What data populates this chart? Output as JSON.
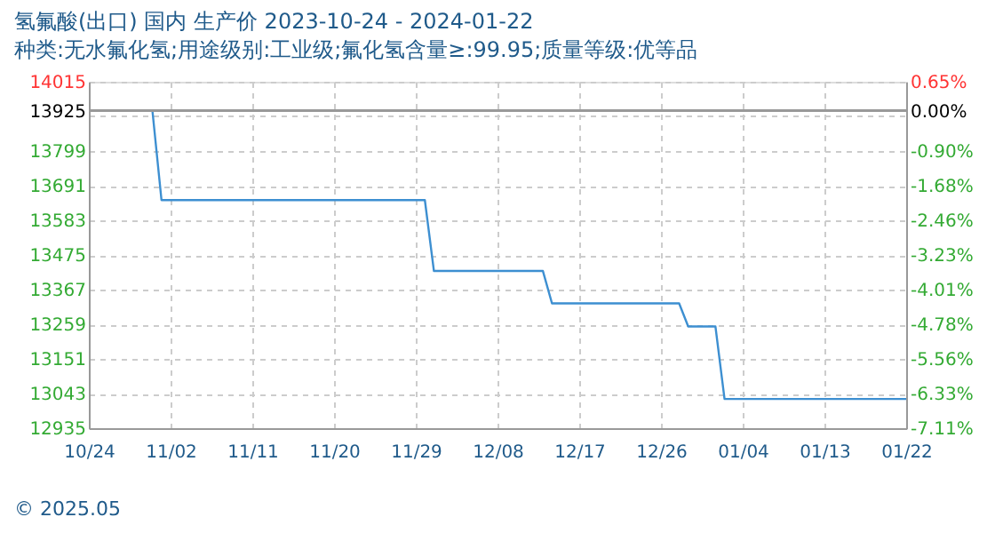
{
  "chart_data": {
    "type": "line",
    "title": "氢氟酸(出口) 国内 生产价 2023-10-24 - 2024-01-22",
    "subtitle": "种类:无水氟化氢;用途级别:工业级;氟化氢含量≥:99.95;质量等级:优等品",
    "annotations": [
      "© 2025.05"
    ],
    "x": [
      "2023-10-24",
      "2023-10-31",
      "2023-11-01",
      "2023-11-30",
      "2023-12-01",
      "2023-12-13",
      "2023-12-14",
      "2023-12-28",
      "2023-12-29",
      "2024-01-01",
      "2024-01-02",
      "2024-01-22"
    ],
    "series": [
      {
        "color": "#3d8fd1",
        "values": [
          13925,
          13925,
          13646,
          13646,
          13425,
          13425,
          13324,
          13324,
          13252,
          13252,
          13026,
          13026
        ]
      }
    ],
    "xlim": [
      "2023-10-24",
      "2024-01-22"
    ],
    "xticks": [
      {
        "value": "2023-10-24",
        "label": "10/24"
      },
      {
        "value": "2023-11-02",
        "label": "11/02"
      },
      {
        "value": "2023-11-11",
        "label": "11/11"
      },
      {
        "value": "2023-11-20",
        "label": "11/20"
      },
      {
        "value": "2023-11-29",
        "label": "11/29"
      },
      {
        "value": "2023-12-08",
        "label": "12/08"
      },
      {
        "value": "2023-12-17",
        "label": "12/17"
      },
      {
        "value": "2023-12-26",
        "label": "12/26"
      },
      {
        "value": "2024-01-04",
        "label": "01/04"
      },
      {
        "value": "2024-01-13",
        "label": "01/13"
      },
      {
        "value": "2024-01-22",
        "label": "01/22"
      }
    ],
    "ylim": [
      12935,
      14015
    ],
    "yticks": [
      14015,
      13925,
      {
        "value": 13907,
        "label": null
      },
      13799,
      13691,
      13583,
      13475,
      13367,
      13259,
      13151,
      13043,
      12935
    ],
    "y2lim": [
      -7.11,
      0.65
    ],
    "y2ticks": [
      {
        "value": 0.65,
        "label": "0.65%"
      },
      {
        "value": 0.0,
        "label": "0.00%"
      },
      {
        "value": -0.9,
        "label": "-0.90%"
      },
      {
        "value": -1.68,
        "label": "-1.68%"
      },
      {
        "value": -2.46,
        "label": "-2.46%"
      },
      {
        "value": -3.23,
        "label": "-3.23%"
      },
      {
        "value": -4.01,
        "label": "-4.01%"
      },
      {
        "value": -4.78,
        "label": "-4.78%"
      },
      {
        "value": -5.56,
        "label": "-5.56%"
      },
      {
        "value": -6.33,
        "label": "-6.33%"
      },
      {
        "value": -7.11,
        "label": "-7.11%"
      }
    ],
    "ref_lines": [
      {
        "axis": "y",
        "value": 13925,
        "color": "#999999"
      }
    ],
    "grid": true,
    "marker": "none",
    "line_style": "solid"
  }
}
